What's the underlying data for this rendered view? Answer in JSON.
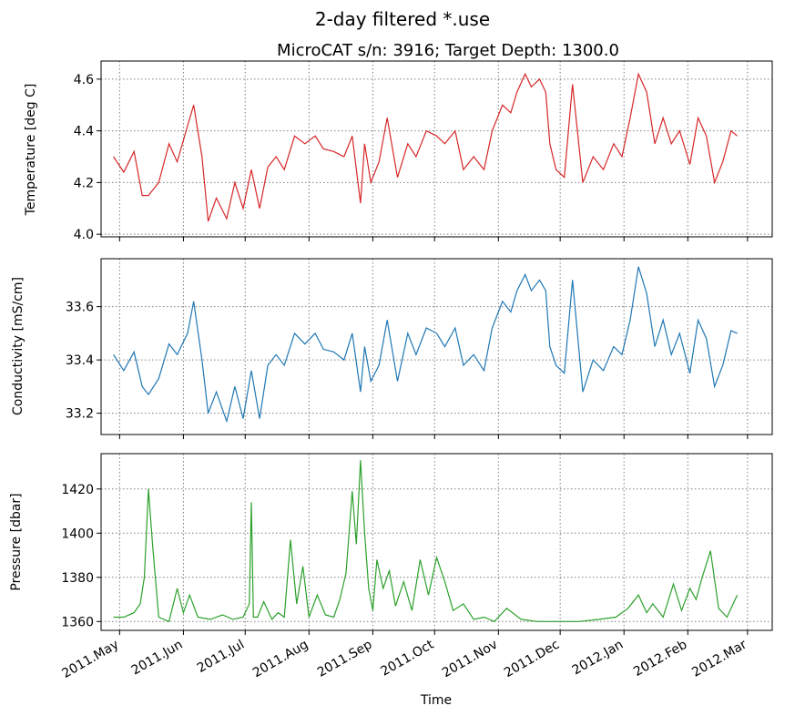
{
  "suptitle": "2-day filtered *.use",
  "subtitle": "MicroCAT s/n: 3916; Target Depth: 1300.0",
  "xlabel": "Time",
  "x_tick_labels": [
    "2011.May",
    "2011.Jun",
    "2011.Jul",
    "2011.Aug",
    "2011.Sep",
    "2011.Oct",
    "2011.Nov",
    "2011.Dec",
    "2012.Jan",
    "2012.Feb",
    "2012.Mar"
  ],
  "colors": {
    "temperature": "#d62728",
    "conductivity": "#1f77b4",
    "pressure": "#2ca02c",
    "grid": "#7f7f7f"
  },
  "chart_data": [
    {
      "type": "line",
      "ylabel": "Temperature [deg C]",
      "ylim": [
        3.99,
        4.67
      ],
      "y_ticks": [
        4.0,
        4.2,
        4.4,
        4.6
      ],
      "y_tick_labels": [
        "4.0",
        "4.2",
        "4.4",
        "4.6"
      ],
      "xlim": [
        "2011-04-22",
        "2012-03-13"
      ],
      "grid": true,
      "x": [
        "2011-04-28",
        "2011-05-03",
        "2011-05-08",
        "2011-05-12",
        "2011-05-15",
        "2011-05-20",
        "2011-05-25",
        "2011-05-29",
        "2011-06-03",
        "2011-06-06",
        "2011-06-10",
        "2011-06-13",
        "2011-06-17",
        "2011-06-22",
        "2011-06-26",
        "2011-06-30",
        "2011-07-04",
        "2011-07-08",
        "2011-07-12",
        "2011-07-16",
        "2011-07-20",
        "2011-07-25",
        "2011-07-30",
        "2011-08-04",
        "2011-08-08",
        "2011-08-13",
        "2011-08-18",
        "2011-08-22",
        "2011-08-26",
        "2011-08-28",
        "2011-08-31",
        "2011-09-04",
        "2011-09-08",
        "2011-09-13",
        "2011-09-18",
        "2011-09-22",
        "2011-09-27",
        "2011-10-02",
        "2011-10-06",
        "2011-10-11",
        "2011-10-15",
        "2011-10-20",
        "2011-10-25",
        "2011-10-29",
        "2011-11-03",
        "2011-11-07",
        "2011-11-10",
        "2011-11-14",
        "2011-11-17",
        "2011-11-21",
        "2011-11-24",
        "2011-11-26",
        "2011-11-29",
        "2011-12-03",
        "2011-12-07",
        "2011-12-12",
        "2011-12-17",
        "2011-12-22",
        "2011-12-27",
        "2011-12-31",
        "2012-01-04",
        "2012-01-08",
        "2012-01-12",
        "2012-01-16",
        "2012-01-20",
        "2012-01-24",
        "2012-01-28",
        "2012-02-02",
        "2012-02-06",
        "2012-02-10",
        "2012-02-14",
        "2012-02-18",
        "2012-02-22",
        "2012-02-25"
      ],
      "series": [
        {
          "values": [
            4.3,
            4.24,
            4.32,
            4.15,
            4.15,
            4.2,
            4.35,
            4.28,
            4.42,
            4.5,
            4.3,
            4.05,
            4.14,
            4.06,
            4.2,
            4.1,
            4.25,
            4.1,
            4.26,
            4.3,
            4.25,
            4.38,
            4.35,
            4.38,
            4.33,
            4.32,
            4.3,
            4.38,
            4.12,
            4.35,
            4.2,
            4.28,
            4.45,
            4.22,
            4.35,
            4.3,
            4.4,
            4.38,
            4.35,
            4.4,
            4.25,
            4.3,
            4.25,
            4.4,
            4.5,
            4.47,
            4.55,
            4.62,
            4.57,
            4.6,
            4.55,
            4.35,
            4.25,
            4.22,
            4.58,
            4.2,
            4.3,
            4.25,
            4.35,
            4.3,
            4.45,
            4.62,
            4.55,
            4.35,
            4.45,
            4.35,
            4.4,
            4.27,
            4.45,
            4.38,
            4.2,
            4.28,
            4.4,
            4.38
          ]
        }
      ]
    },
    {
      "type": "line",
      "ylabel": "Conductivity [mS/cm]",
      "ylim": [
        33.12,
        33.78
      ],
      "y_ticks": [
        33.2,
        33.4,
        33.6
      ],
      "y_tick_labels": [
        "33.2",
        "33.4",
        "33.6"
      ],
      "xlim": [
        "2011-04-22",
        "2012-03-13"
      ],
      "grid": true,
      "x": [
        "2011-04-28",
        "2011-05-03",
        "2011-05-08",
        "2011-05-12",
        "2011-05-15",
        "2011-05-20",
        "2011-05-25",
        "2011-05-29",
        "2011-06-03",
        "2011-06-06",
        "2011-06-10",
        "2011-06-13",
        "2011-06-17",
        "2011-06-22",
        "2011-06-26",
        "2011-06-30",
        "2011-07-04",
        "2011-07-08",
        "2011-07-12",
        "2011-07-16",
        "2011-07-20",
        "2011-07-25",
        "2011-07-30",
        "2011-08-04",
        "2011-08-08",
        "2011-08-13",
        "2011-08-18",
        "2011-08-22",
        "2011-08-26",
        "2011-08-28",
        "2011-08-31",
        "2011-09-04",
        "2011-09-08",
        "2011-09-13",
        "2011-09-18",
        "2011-09-22",
        "2011-09-27",
        "2011-10-02",
        "2011-10-06",
        "2011-10-11",
        "2011-10-15",
        "2011-10-20",
        "2011-10-25",
        "2011-10-29",
        "2011-11-03",
        "2011-11-07",
        "2011-11-10",
        "2011-11-14",
        "2011-11-17",
        "2011-11-21",
        "2011-11-24",
        "2011-11-26",
        "2011-11-29",
        "2011-12-03",
        "2011-12-07",
        "2011-12-12",
        "2011-12-17",
        "2011-12-22",
        "2011-12-27",
        "2011-12-31",
        "2012-01-04",
        "2012-01-08",
        "2012-01-12",
        "2012-01-16",
        "2012-01-20",
        "2012-01-24",
        "2012-01-28",
        "2012-02-02",
        "2012-02-06",
        "2012-02-10",
        "2012-02-14",
        "2012-02-18",
        "2012-02-22",
        "2012-02-25"
      ],
      "series": [
        {
          "values": [
            33.42,
            33.36,
            33.43,
            33.3,
            33.27,
            33.33,
            33.46,
            33.42,
            33.5,
            33.62,
            33.4,
            33.2,
            33.28,
            33.17,
            33.3,
            33.18,
            33.36,
            33.18,
            33.38,
            33.42,
            33.38,
            33.5,
            33.46,
            33.5,
            33.44,
            33.43,
            33.4,
            33.5,
            33.28,
            33.45,
            33.32,
            33.38,
            33.55,
            33.32,
            33.5,
            33.42,
            33.52,
            33.5,
            33.45,
            33.52,
            33.38,
            33.42,
            33.36,
            33.52,
            33.62,
            33.58,
            33.66,
            33.72,
            33.66,
            33.7,
            33.66,
            33.45,
            33.38,
            33.35,
            33.7,
            33.28,
            33.4,
            33.36,
            33.45,
            33.42,
            33.55,
            33.75,
            33.65,
            33.45,
            33.55,
            33.42,
            33.5,
            33.35,
            33.55,
            33.48,
            33.3,
            33.38,
            33.51,
            33.5
          ]
        }
      ]
    },
    {
      "type": "line",
      "ylabel": "Pressure [dbar]",
      "ylim": [
        1356,
        1436
      ],
      "y_ticks": [
        1360,
        1380,
        1400,
        1420
      ],
      "y_tick_labels": [
        "1360",
        "1380",
        "1400",
        "1420"
      ],
      "xlim": [
        "2011-04-22",
        "2012-03-13"
      ],
      "grid": true,
      "x": [
        "2011-04-28",
        "2011-05-03",
        "2011-05-08",
        "2011-05-11",
        "2011-05-13",
        "2011-05-15",
        "2011-05-17",
        "2011-05-20",
        "2011-05-25",
        "2011-05-29",
        "2011-06-01",
        "2011-06-04",
        "2011-06-08",
        "2011-06-14",
        "2011-06-20",
        "2011-06-25",
        "2011-06-30",
        "2011-07-03",
        "2011-07-04",
        "2011-07-05",
        "2011-07-07",
        "2011-07-10",
        "2011-07-14",
        "2011-07-17",
        "2011-07-20",
        "2011-07-23",
        "2011-07-26",
        "2011-07-29",
        "2011-08-01",
        "2011-08-05",
        "2011-08-09",
        "2011-08-13",
        "2011-08-16",
        "2011-08-19",
        "2011-08-22",
        "2011-08-24",
        "2011-08-26",
        "2011-08-28",
        "2011-08-30",
        "2011-09-01",
        "2011-09-03",
        "2011-09-06",
        "2011-09-09",
        "2011-09-12",
        "2011-09-16",
        "2011-09-20",
        "2011-09-24",
        "2011-09-28",
        "2011-10-02",
        "2011-10-06",
        "2011-10-10",
        "2011-10-15",
        "2011-10-20",
        "2011-10-25",
        "2011-10-30",
        "2011-11-05",
        "2011-11-12",
        "2011-11-20",
        "2011-12-01",
        "2011-12-10",
        "2011-12-20",
        "2011-12-28",
        "2012-01-03",
        "2012-01-08",
        "2012-01-12",
        "2012-01-15",
        "2012-01-20",
        "2012-01-25",
        "2012-01-29",
        "2012-02-02",
        "2012-02-05",
        "2012-02-08",
        "2012-02-12",
        "2012-02-16",
        "2012-02-20",
        "2012-02-25"
      ],
      "series": [
        {
          "values": [
            1362,
            1362,
            1364,
            1368,
            1380,
            1420,
            1395,
            1362,
            1360,
            1375,
            1364,
            1372,
            1362,
            1361,
            1363,
            1361,
            1362,
            1368,
            1414,
            1362,
            1362,
            1369,
            1361,
            1364,
            1362,
            1397,
            1368,
            1385,
            1362,
            1372,
            1363,
            1362,
            1370,
            1382,
            1419,
            1395,
            1433,
            1400,
            1375,
            1365,
            1388,
            1375,
            1383,
            1367,
            1378,
            1365,
            1388,
            1372,
            1389,
            1378,
            1365,
            1368,
            1361,
            1362,
            1360,
            1366,
            1361,
            1360,
            1360,
            1360,
            1361,
            1362,
            1366,
            1372,
            1364,
            1368,
            1362,
            1377,
            1365,
            1375,
            1370,
            1380,
            1392,
            1366,
            1362,
            1372
          ]
        }
      ]
    }
  ]
}
